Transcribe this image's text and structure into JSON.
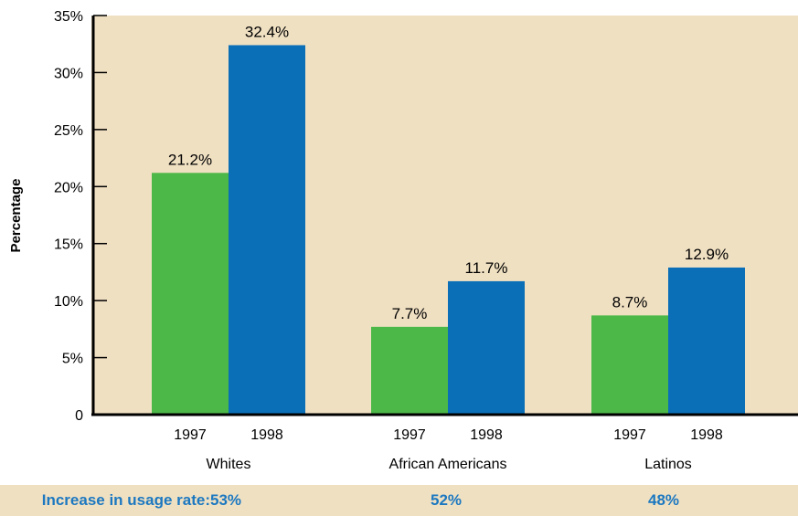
{
  "chart_data": {
    "type": "bar",
    "ylabel": "Percentage",
    "ylim": [
      0,
      35
    ],
    "yticks": [
      "0",
      "5%",
      "10%",
      "15%",
      "20%",
      "25%",
      "30%",
      "35%"
    ],
    "groups": [
      "Whites",
      "African Americans",
      "Latinos"
    ],
    "subcategories": [
      "1997",
      "1998"
    ],
    "series": [
      {
        "values": [
          21.2,
          7.7,
          8.7
        ],
        "labels": [
          "21.2%",
          "7.7%",
          "8.7%"
        ],
        "color": "#4cb848"
      },
      {
        "values": [
          32.4,
          11.7,
          12.9
        ],
        "labels": [
          "32.4%",
          "11.7%",
          "12.9%"
        ],
        "color": "#0b6fb8"
      }
    ],
    "background_color": "#f0e0c2"
  },
  "footer": {
    "label": "Increase in usage rate:",
    "values": [
      "53%",
      "52%",
      "48%"
    ]
  }
}
